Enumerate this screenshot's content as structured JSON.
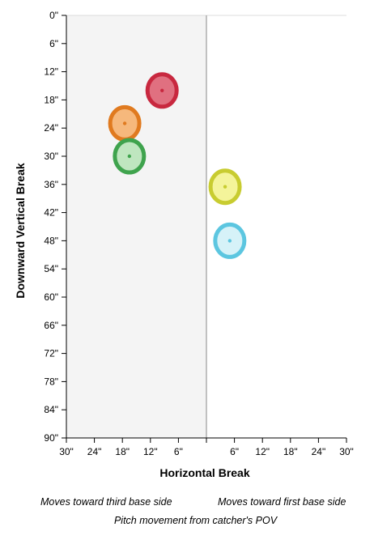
{
  "chart_data": {
    "type": "scatter",
    "title": "",
    "xlabel": "Horizontal Break",
    "ylabel": "Downward Vertical Break",
    "x_ticks": [
      "30\"",
      "24\"",
      "18\"",
      "12\"",
      "6\"",
      "",
      "6\"",
      "12\"",
      "18\"",
      "24\"",
      "30\""
    ],
    "y_ticks": [
      "0\"",
      "6\"",
      "12\"",
      "18\"",
      "24\"",
      "30\"",
      "36\"",
      "42\"",
      "48\"",
      "54\"",
      "60\"",
      "66\"",
      "72\"",
      "78\"",
      "84\"",
      "90\""
    ],
    "xlim": [
      -30,
      30
    ],
    "ylim": [
      0,
      90
    ],
    "x_units": "inches (negative = toward third base side, positive = toward first base side)",
    "shaded_region": "third base side",
    "points": [
      {
        "x": -9.5,
        "y": 16.0,
        "color": "#c8283f",
        "fill": "#e07080"
      },
      {
        "x": -17.5,
        "y": 23.0,
        "color": "#e07a1f",
        "fill": "#f6b87c"
      },
      {
        "x": -16.5,
        "y": 30.0,
        "color": "#3fa34d",
        "fill": "#bfe6bf"
      },
      {
        "x": 4.0,
        "y": 36.5,
        "color": "#c8cc30",
        "fill": "#f4f49a"
      },
      {
        "x": 5.0,
        "y": 48.0,
        "color": "#5cc6e0",
        "fill": "#d6f2f8"
      }
    ]
  },
  "notes": {
    "left": "Moves toward third base side",
    "right": "Moves toward first base side",
    "caption": "Pitch movement from catcher's POV"
  }
}
